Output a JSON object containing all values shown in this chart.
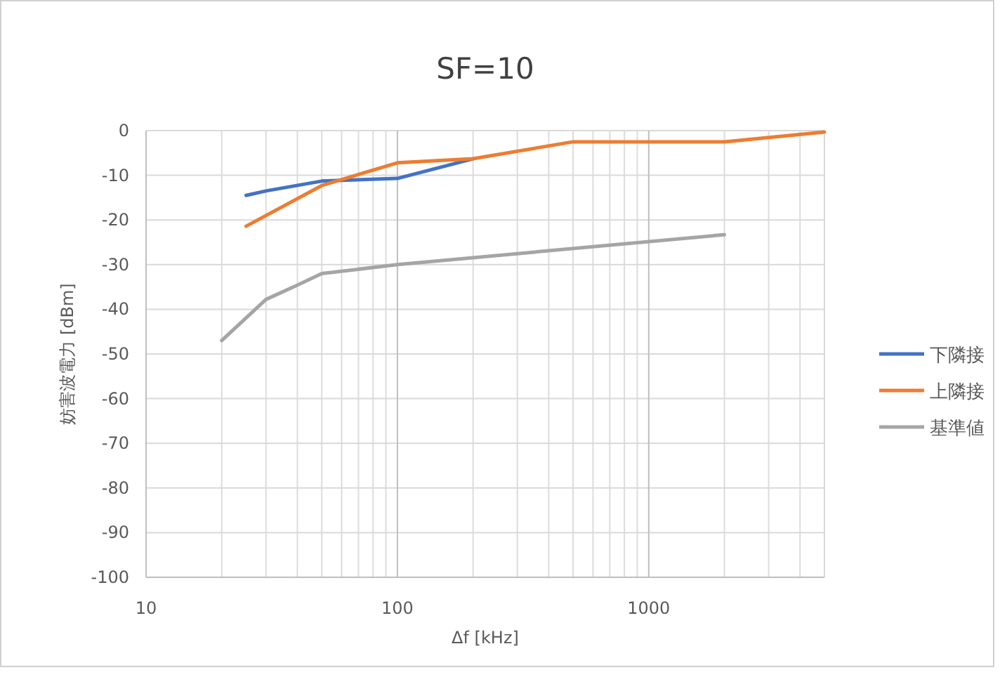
{
  "chart_data": {
    "type": "line",
    "title": "SF=10",
    "xlabel": "Δf [kHz]",
    "ylabel": "妨害波電力 [dBm]",
    "log": "x",
    "grid": true,
    "legend": "right",
    "marker": "none",
    "line_style": "solid",
    "xlim": [
      10,
      5000
    ],
    "xticks": [
      10,
      100,
      1000
    ],
    "ylim": [
      -100,
      0
    ],
    "yticks": [
      -100,
      -90,
      -80,
      -70,
      -60,
      -50,
      -40,
      -30,
      -20,
      -10,
      0
    ],
    "series": [
      {
        "name": "下隣接",
        "color": "#4472c4",
        "x": [
          25,
          30,
          50,
          100,
          200
        ],
        "values": [
          -14.5,
          -13.5,
          -11.3,
          -10.7,
          -6.3
        ]
      },
      {
        "name": "上隣接",
        "color": "#ed7d31",
        "x": [
          25,
          50,
          100,
          200,
          500,
          2000,
          5000
        ],
        "values": [
          -21.4,
          -12.3,
          -7.2,
          -6.3,
          -2.5,
          -2.5,
          -0.3
        ]
      },
      {
        "name": "基準値",
        "color": "#a5a5a5",
        "x": [
          20,
          30,
          40,
          50,
          100,
          2000
        ],
        "values": [
          -47,
          -37.8,
          -34.6,
          -32,
          -30,
          -23.3
        ]
      }
    ]
  }
}
